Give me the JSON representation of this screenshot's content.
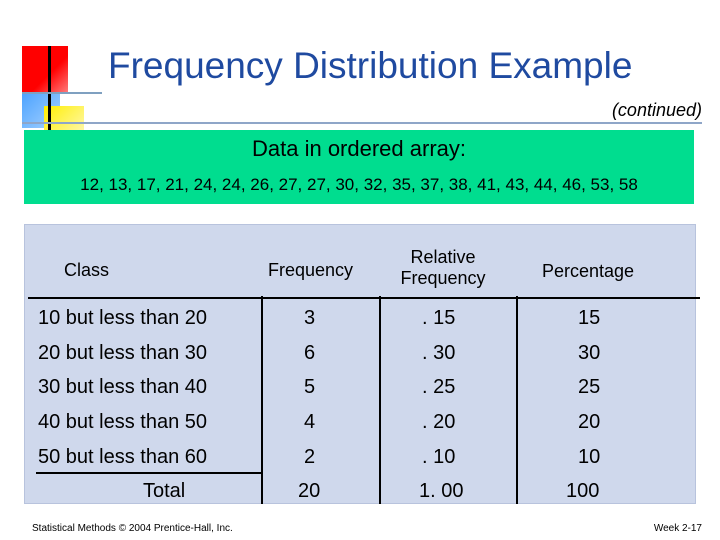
{
  "title": "Frequency Distribution Example",
  "subtitle": "(continued)",
  "data_box": {
    "header": "Data in ordered array:",
    "values": "12, 13, 17, 21, 24, 24, 26, 27, 27, 30, 32, 35, 37, 38, 41, 43, 44, 46, 53, 58"
  },
  "table": {
    "headers": {
      "class": "Class",
      "frequency": "Frequency",
      "relative_line1": "Relative",
      "relative_line2": "Frequency",
      "percentage": "Percentage"
    },
    "rows": [
      {
        "class": "10 but less than 20",
        "frequency": "3",
        "relative": ". 15",
        "percentage": "15"
      },
      {
        "class": "20 but less than 30",
        "frequency": "6",
        "relative": ". 30",
        "percentage": "30"
      },
      {
        "class": "30 but less than 40",
        "frequency": "5",
        "relative": ". 25",
        "percentage": "25"
      },
      {
        "class": "40 but less than 50",
        "frequency": "4",
        "relative": ". 20",
        "percentage": "20"
      },
      {
        "class": "50 but less than 60",
        "frequency": "2",
        "relative": ". 10",
        "percentage": "10"
      }
    ],
    "total": {
      "label": "Total",
      "frequency": "20",
      "relative": "1. 00",
      "percentage": "100"
    }
  },
  "footer": {
    "left": "Statistical Methods © 2004 Prentice-Hall, Inc.",
    "right": "Week 2-17"
  }
}
